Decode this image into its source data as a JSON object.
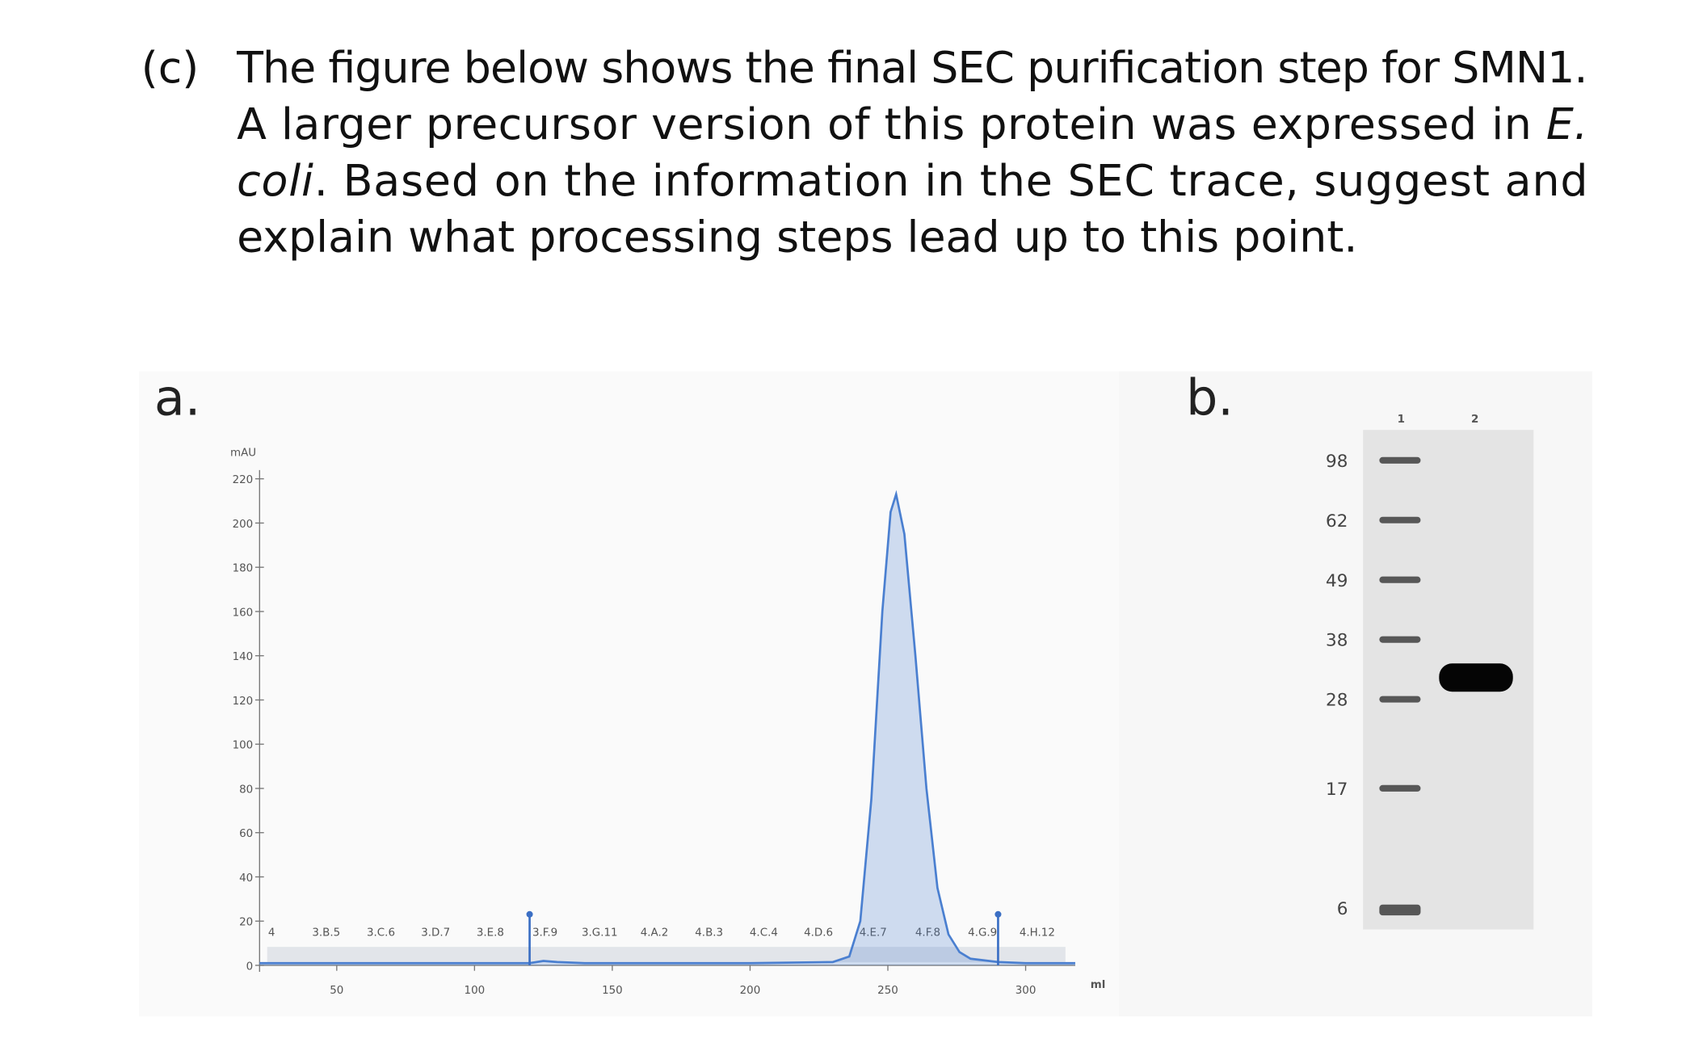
{
  "question": {
    "label": "(c)",
    "lines": [
      [
        "The figure below shows the final SEC purification step for SMN1."
      ],
      [
        "A larger precursor version of this protein was expressed in ",
        "E."
      ],
      [
        "coli",
        ". Based on the information in the SEC trace, suggest and"
      ],
      [
        "explain what processing steps lead up to this point."
      ]
    ]
  },
  "panel_a_label": "a.",
  "chart_data": {
    "type": "line",
    "y_label": "mAU",
    "x_label": "ml",
    "x": [
      22,
      60,
      100,
      120,
      125,
      130,
      140,
      200,
      230,
      236,
      240,
      244,
      248,
      251,
      253,
      256,
      260,
      264,
      268,
      272,
      276,
      280,
      290,
      300,
      318
    ],
    "series": [
      {
        "color": "#4a7fd0",
        "values": [
          1,
          1,
          1,
          1,
          2,
          1.5,
          1,
          1,
          1.5,
          4,
          20,
          75,
          160,
          205,
          213,
          195,
          140,
          80,
          35,
          14,
          6,
          3,
          1.5,
          1,
          1
        ]
      }
    ],
    "xlim": [
      22,
      318
    ],
    "ylim": [
      0,
      220
    ],
    "xticks": [
      50,
      100,
      150,
      200,
      250,
      300
    ],
    "yticks": [
      0,
      20,
      40,
      60,
      80,
      100,
      120,
      140,
      160,
      180,
      200,
      220
    ],
    "events": [
      120,
      290
    ],
    "fractions": [
      "4",
      "3.B.5",
      "3.C.6",
      "3.D.7",
      "3.E.8",
      "3.F.9",
      "3.G.11",
      "4.A.2",
      "4.B.3",
      "4.C.4",
      "4.D.6",
      "4.E.7",
      "4.F.8",
      "4.G.9",
      "4.H.12"
    ]
  },
  "panel_b_label": "b.",
  "gel": {
    "lanes": [
      "1",
      "2"
    ],
    "ladder": [
      98,
      62,
      49,
      38,
      28,
      17,
      6
    ]
  }
}
